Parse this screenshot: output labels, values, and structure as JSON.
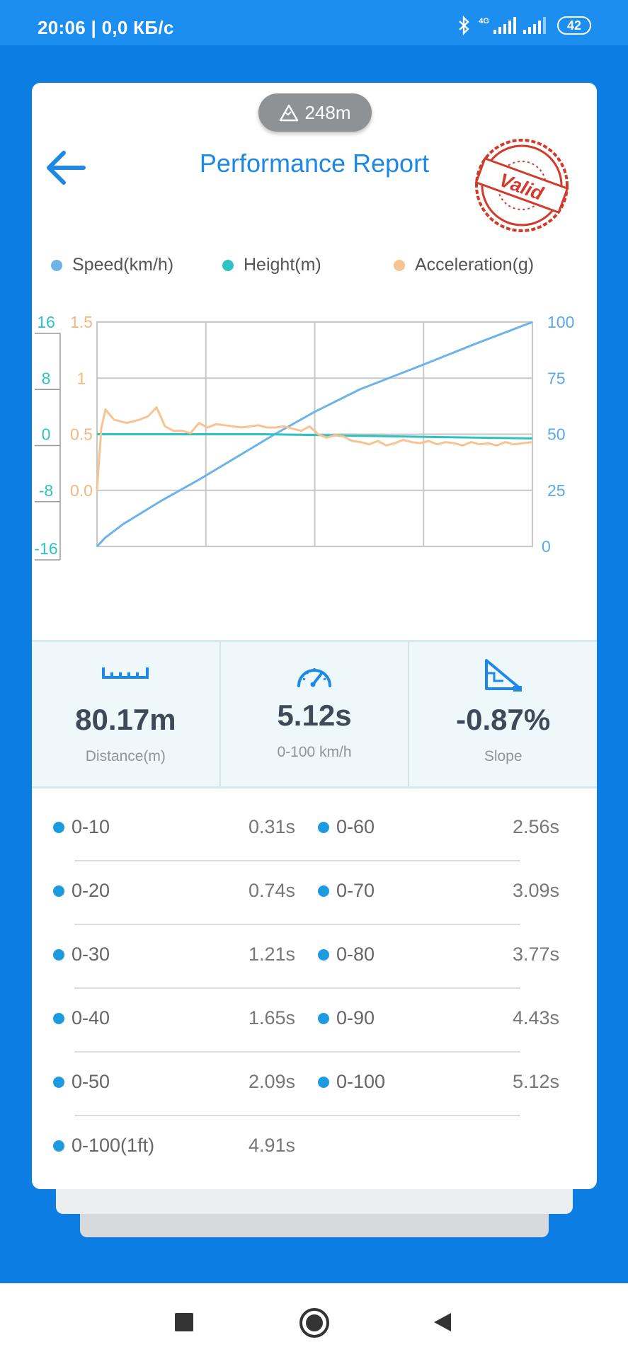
{
  "status_bar": {
    "time": "20:06 | 0,0 КБ/с",
    "network_type": "4G",
    "battery": "42"
  },
  "header": {
    "altitude": "248m",
    "title": "Performance Report",
    "stamp_text": "Valid"
  },
  "colors": {
    "speed": "#6db3ea",
    "height": "#2ec2c2",
    "acceleration": "#f8c392",
    "accent": "#1e88e5"
  },
  "legend": [
    "Speed(km/h)",
    "Height(m)",
    "Acceleration(g)"
  ],
  "chart_data": {
    "type": "line",
    "grid": true,
    "legend_position": "top",
    "axes": {
      "height_left": {
        "ticks": [
          "16",
          "8",
          "0",
          "-8",
          "-16"
        ],
        "range": [
          -16,
          16
        ]
      },
      "accel_left": {
        "ticks": [
          "1.5",
          "1",
          "0.5",
          "0.0"
        ],
        "range": [
          -0.5,
          1.5
        ]
      },
      "speed_right": {
        "ticks": [
          "100",
          "75",
          "50",
          "25",
          "0"
        ],
        "range": [
          0,
          100
        ]
      }
    },
    "x_range": [
      0,
      5.12
    ],
    "series": [
      {
        "name": "Speed(km/h)",
        "axis": "speed_right",
        "x": [
          0,
          0.1,
          0.31,
          0.74,
          1.21,
          1.65,
          2.09,
          2.56,
          3.09,
          3.77,
          4.43,
          5.12
        ],
        "y": [
          0,
          4,
          10,
          20,
          30,
          40,
          50,
          60,
          70,
          80,
          90,
          100
        ]
      },
      {
        "name": "Height(m)",
        "axis": "height_left",
        "x": [
          0,
          1,
          2,
          3,
          4,
          5.12
        ],
        "y": [
          0,
          0,
          0,
          -0.2,
          -0.4,
          -0.6
        ]
      },
      {
        "name": "Acceleration(g)",
        "axis": "accel_left",
        "x": [
          0,
          0.05,
          0.1,
          0.2,
          0.35,
          0.5,
          0.6,
          0.7,
          0.8,
          0.9,
          1.0,
          1.1,
          1.2,
          1.3,
          1.4,
          1.5,
          1.6,
          1.7,
          1.8,
          1.9,
          2.0,
          2.1,
          2.2,
          2.3,
          2.4,
          2.5,
          2.6,
          2.7,
          2.8,
          2.9,
          3.0,
          3.1,
          3.2,
          3.3,
          3.4,
          3.5,
          3.6,
          3.7,
          3.8,
          3.9,
          4.0,
          4.1,
          4.2,
          4.3,
          4.4,
          4.5,
          4.6,
          4.7,
          4.8,
          4.9,
          5.0,
          5.12
        ],
        "y": [
          0.0,
          0.55,
          0.72,
          0.63,
          0.6,
          0.63,
          0.66,
          0.74,
          0.57,
          0.53,
          0.53,
          0.51,
          0.6,
          0.56,
          0.59,
          0.58,
          0.57,
          0.56,
          0.57,
          0.58,
          0.56,
          0.56,
          0.57,
          0.55,
          0.53,
          0.57,
          0.5,
          0.47,
          0.49,
          0.48,
          0.44,
          0.43,
          0.41,
          0.44,
          0.4,
          0.42,
          0.45,
          0.43,
          0.42,
          0.44,
          0.41,
          0.43,
          0.42,
          0.4,
          0.43,
          0.41,
          0.42,
          0.4,
          0.43,
          0.41,
          0.42,
          0.43
        ]
      }
    ]
  },
  "stats": [
    {
      "icon": "ruler-icon",
      "value": "80.17m",
      "label": "Distance(m)"
    },
    {
      "icon": "speedometer-icon",
      "value": "5.12s",
      "label": "0-100 km/h"
    },
    {
      "icon": "slope-icon",
      "value": "-0.87%",
      "label": "Slope"
    }
  ],
  "splits": [
    [
      {
        "label": "0-10",
        "time": "0.31s"
      },
      {
        "label": "0-60",
        "time": "2.56s"
      }
    ],
    [
      {
        "label": "0-20",
        "time": "0.74s"
      },
      {
        "label": "0-70",
        "time": "3.09s"
      }
    ],
    [
      {
        "label": "0-30",
        "time": "1.21s"
      },
      {
        "label": "0-80",
        "time": "3.77s"
      }
    ],
    [
      {
        "label": "0-40",
        "time": "1.65s"
      },
      {
        "label": "0-90",
        "time": "4.43s"
      }
    ],
    [
      {
        "label": "0-50",
        "time": "2.09s"
      },
      {
        "label": "0-100",
        "time": "5.12s"
      }
    ],
    [
      {
        "label": "0-100(1ft)",
        "time": "4.91s"
      }
    ]
  ]
}
